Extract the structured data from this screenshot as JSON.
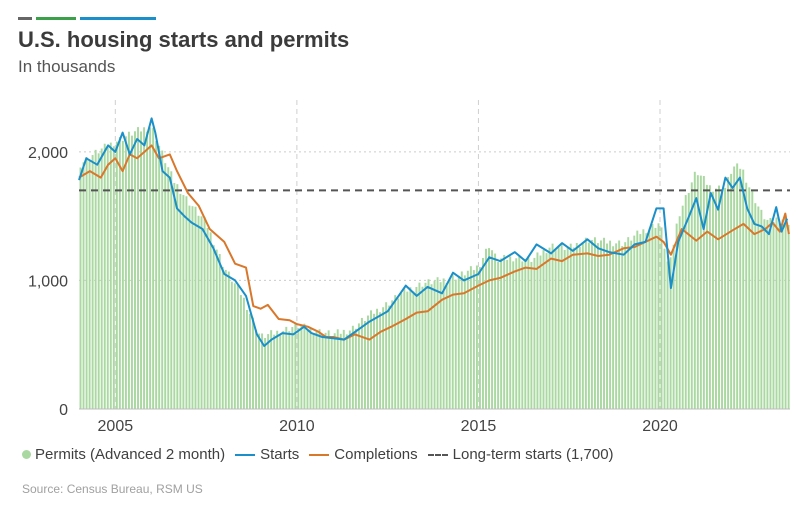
{
  "title": "U.S. housing starts and permits",
  "subtitle": "In thousands",
  "source": "Source: Census Bureau, RSM US",
  "colors": {
    "permits": "#a9d8a0",
    "starts": "#1a8fc9",
    "completions": "#d9772b",
    "longterm": "#555555",
    "brand1": "#666666",
    "brand2": "#3aa04a",
    "brand3": "#1a8fc9"
  },
  "legend": {
    "permits": "Permits (Advanced 2 month)",
    "starts": "Starts",
    "completions": "Completions",
    "longterm": "Long-term starts (1,700)"
  },
  "chart_data": {
    "type": "bar",
    "title": "U.S. housing starts and permits",
    "subtitle": "In thousands",
    "xlim": [
      2004.0,
      2023.58
    ],
    "ylim": [
      0,
      2450
    ],
    "x_ticks": [
      2005,
      2010,
      2015,
      2020
    ],
    "x_tick_labels": [
      "2005",
      "2010",
      "2015",
      "2020"
    ],
    "y_ticks": [
      0,
      1000,
      2000
    ],
    "y_tick_labels": [
      "0",
      "1,000",
      "2,000"
    ],
    "grid": "dotted",
    "legend_position": "bottom",
    "reference_line": {
      "name": "Long-term starts (1,700)",
      "value": 1700
    },
    "series": [
      {
        "name": "Permits (Advanced 2 month)",
        "type": "bar",
        "points": [
          [
            2004.0,
            1900
          ],
          [
            2004.5,
            2000
          ],
          [
            2005.0,
            2080
          ],
          [
            2005.5,
            2150
          ],
          [
            2006.0,
            2200
          ],
          [
            2006.3,
            1980
          ],
          [
            2006.6,
            1780
          ],
          [
            2007.0,
            1620
          ],
          [
            2007.5,
            1450
          ],
          [
            2008.0,
            1100
          ],
          [
            2008.5,
            880
          ],
          [
            2009.0,
            560
          ],
          [
            2009.5,
            600
          ],
          [
            2010.0,
            650
          ],
          [
            2010.5,
            610
          ],
          [
            2011.0,
            580
          ],
          [
            2011.5,
            620
          ],
          [
            2012.0,
            730
          ],
          [
            2012.5,
            820
          ],
          [
            2013.0,
            920
          ],
          [
            2013.5,
            980
          ],
          [
            2014.0,
            1000
          ],
          [
            2014.5,
            1040
          ],
          [
            2015.0,
            1110
          ],
          [
            2015.3,
            1280
          ],
          [
            2015.5,
            1160
          ],
          [
            2016.0,
            1180
          ],
          [
            2016.5,
            1160
          ],
          [
            2017.0,
            1270
          ],
          [
            2017.5,
            1250
          ],
          [
            2018.0,
            1320
          ],
          [
            2018.5,
            1300
          ],
          [
            2019.0,
            1290
          ],
          [
            2019.5,
            1380
          ],
          [
            2020.0,
            1450
          ],
          [
            2020.25,
            1080
          ],
          [
            2020.5,
            1500
          ],
          [
            2021.0,
            1850
          ],
          [
            2021.4,
            1720
          ],
          [
            2021.8,
            1720
          ],
          [
            2022.0,
            1880
          ],
          [
            2022.25,
            1880
          ],
          [
            2022.5,
            1700
          ],
          [
            2022.8,
            1520
          ],
          [
            2023.0,
            1450
          ],
          [
            2023.3,
            1490
          ],
          [
            2023.58,
            1450
          ]
        ]
      },
      {
        "name": "Starts",
        "type": "line",
        "points": [
          [
            2004.0,
            1780
          ],
          [
            2004.2,
            1950
          ],
          [
            2004.5,
            1900
          ],
          [
            2004.8,
            2050
          ],
          [
            2005.0,
            2000
          ],
          [
            2005.2,
            2150
          ],
          [
            2005.4,
            1980
          ],
          [
            2005.6,
            2100
          ],
          [
            2005.8,
            2050
          ],
          [
            2006.0,
            2260
          ],
          [
            2006.1,
            2150
          ],
          [
            2006.3,
            1850
          ],
          [
            2006.5,
            1800
          ],
          [
            2006.7,
            1560
          ],
          [
            2006.9,
            1500
          ],
          [
            2007.1,
            1450
          ],
          [
            2007.4,
            1400
          ],
          [
            2007.7,
            1250
          ],
          [
            2008.0,
            1050
          ],
          [
            2008.3,
            1000
          ],
          [
            2008.6,
            880
          ],
          [
            2008.9,
            580
          ],
          [
            2009.1,
            490
          ],
          [
            2009.3,
            540
          ],
          [
            2009.6,
            590
          ],
          [
            2009.9,
            580
          ],
          [
            2010.2,
            640
          ],
          [
            2010.4,
            590
          ],
          [
            2010.7,
            560
          ],
          [
            2011.0,
            550
          ],
          [
            2011.3,
            540
          ],
          [
            2011.6,
            600
          ],
          [
            2012.0,
            680
          ],
          [
            2012.5,
            760
          ],
          [
            2012.8,
            880
          ],
          [
            2013.0,
            960
          ],
          [
            2013.3,
            880
          ],
          [
            2013.6,
            950
          ],
          [
            2014.0,
            900
          ],
          [
            2014.3,
            1060
          ],
          [
            2014.6,
            1000
          ],
          [
            2015.0,
            1050
          ],
          [
            2015.3,
            1180
          ],
          [
            2015.6,
            1150
          ],
          [
            2016.0,
            1220
          ],
          [
            2016.3,
            1150
          ],
          [
            2016.6,
            1280
          ],
          [
            2017.0,
            1210
          ],
          [
            2017.3,
            1290
          ],
          [
            2017.6,
            1230
          ],
          [
            2018.0,
            1320
          ],
          [
            2018.3,
            1250
          ],
          [
            2018.6,
            1220
          ],
          [
            2019.0,
            1200
          ],
          [
            2019.3,
            1280
          ],
          [
            2019.6,
            1300
          ],
          [
            2019.9,
            1560
          ],
          [
            2020.1,
            1560
          ],
          [
            2020.3,
            940
          ],
          [
            2020.5,
            1300
          ],
          [
            2020.8,
            1500
          ],
          [
            2021.0,
            1640
          ],
          [
            2021.2,
            1400
          ],
          [
            2021.4,
            1680
          ],
          [
            2021.6,
            1550
          ],
          [
            2021.8,
            1800
          ],
          [
            2022.0,
            1720
          ],
          [
            2022.2,
            1800
          ],
          [
            2022.4,
            1560
          ],
          [
            2022.6,
            1440
          ],
          [
            2022.8,
            1420
          ],
          [
            2023.0,
            1360
          ],
          [
            2023.2,
            1570
          ],
          [
            2023.35,
            1380
          ],
          [
            2023.5,
            1480
          ]
        ]
      },
      {
        "name": "Completions",
        "type": "line",
        "points": [
          [
            2004.0,
            1800
          ],
          [
            2004.3,
            1850
          ],
          [
            2004.6,
            1800
          ],
          [
            2004.8,
            1900
          ],
          [
            2005.0,
            1950
          ],
          [
            2005.2,
            1850
          ],
          [
            2005.4,
            1980
          ],
          [
            2005.6,
            1950
          ],
          [
            2005.8,
            2000
          ],
          [
            2006.0,
            2050
          ],
          [
            2006.2,
            1950
          ],
          [
            2006.5,
            1980
          ],
          [
            2006.7,
            1850
          ],
          [
            2007.0,
            1680
          ],
          [
            2007.3,
            1580
          ],
          [
            2007.6,
            1400
          ],
          [
            2008.0,
            1300
          ],
          [
            2008.3,
            1130
          ],
          [
            2008.6,
            1100
          ],
          [
            2008.8,
            800
          ],
          [
            2009.0,
            780
          ],
          [
            2009.2,
            810
          ],
          [
            2009.5,
            700
          ],
          [
            2009.8,
            690
          ],
          [
            2010.0,
            660
          ],
          [
            2010.3,
            640
          ],
          [
            2010.6,
            600
          ],
          [
            2010.8,
            560
          ],
          [
            2011.0,
            560
          ],
          [
            2011.3,
            540
          ],
          [
            2011.6,
            580
          ],
          [
            2012.0,
            540
          ],
          [
            2012.3,
            600
          ],
          [
            2012.6,
            640
          ],
          [
            2013.0,
            700
          ],
          [
            2013.3,
            750
          ],
          [
            2013.6,
            760
          ],
          [
            2014.0,
            850
          ],
          [
            2014.3,
            890
          ],
          [
            2014.6,
            900
          ],
          [
            2015.0,
            960
          ],
          [
            2015.3,
            1000
          ],
          [
            2015.6,
            1020
          ],
          [
            2016.0,
            1070
          ],
          [
            2016.3,
            1100
          ],
          [
            2016.6,
            1090
          ],
          [
            2017.0,
            1170
          ],
          [
            2017.3,
            1150
          ],
          [
            2017.6,
            1200
          ],
          [
            2018.0,
            1210
          ],
          [
            2018.3,
            1190
          ],
          [
            2018.6,
            1200
          ],
          [
            2019.0,
            1250
          ],
          [
            2019.3,
            1260
          ],
          [
            2019.6,
            1300
          ],
          [
            2019.9,
            1340
          ],
          [
            2020.1,
            1300
          ],
          [
            2020.3,
            1200
          ],
          [
            2020.6,
            1400
          ],
          [
            2021.0,
            1310
          ],
          [
            2021.3,
            1380
          ],
          [
            2021.6,
            1320
          ],
          [
            2022.0,
            1390
          ],
          [
            2022.3,
            1440
          ],
          [
            2022.6,
            1360
          ],
          [
            2022.9,
            1400
          ],
          [
            2023.1,
            1450
          ],
          [
            2023.3,
            1380
          ],
          [
            2023.45,
            1520
          ],
          [
            2023.55,
            1360
          ]
        ]
      }
    ]
  }
}
